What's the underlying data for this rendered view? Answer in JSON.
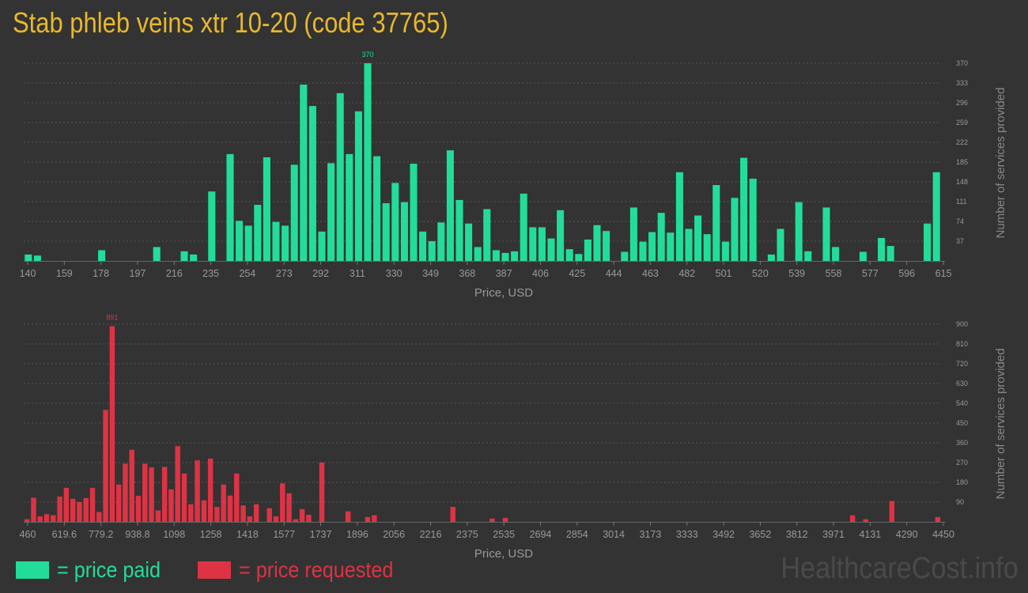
{
  "title": "Stab phleb veins xtr 10-20 (code 37765)",
  "colors": {
    "paid": "#22dd99",
    "requested": "#dd3344",
    "title": "#e8b82c",
    "axis_text": "#999999",
    "background": "#333333"
  },
  "legend": {
    "paid": "= price paid",
    "requested": "= price requested"
  },
  "watermark": "HealthcareCost.info",
  "chart_data": [
    {
      "type": "bar",
      "color": "#22dd99",
      "xlabel": "Price, USD",
      "ylabel": "Number of services provided",
      "x_tick_labels": [
        "140",
        "159",
        "178",
        "197",
        "216",
        "235",
        "254",
        "273",
        "292",
        "311",
        "330",
        "349",
        "368",
        "387",
        "406",
        "425",
        "444",
        "463",
        "482",
        "501",
        "520",
        "539",
        "558",
        "577",
        "596",
        "615"
      ],
      "y_tick_labels": [
        "37",
        "74",
        "111",
        "148",
        "185",
        "222",
        "259",
        "296",
        "333",
        "370"
      ],
      "ylim": [
        0,
        370
      ],
      "peak_label": "370",
      "values": [
        12,
        10,
        0,
        0,
        0,
        0,
        0,
        0,
        20,
        0,
        0,
        0,
        0,
        0,
        26,
        0,
        0,
        18,
        12,
        0,
        130,
        0,
        200,
        75,
        66,
        105,
        194,
        73,
        66,
        180,
        330,
        290,
        55,
        183,
        314,
        200,
        280,
        370,
        196,
        108,
        146,
        110,
        182,
        55,
        37,
        72,
        207,
        114,
        70,
        26,
        97,
        20,
        15,
        18,
        126,
        63,
        63,
        42,
        95,
        22,
        13,
        40,
        67,
        56,
        0,
        17,
        100,
        36,
        54,
        90,
        53,
        166,
        60,
        85,
        50,
        142,
        36,
        118,
        193,
        154,
        0,
        12,
        60,
        0,
        110,
        18,
        0,
        100,
        26,
        0,
        0,
        17,
        0,
        43,
        28,
        0,
        0,
        0,
        70,
        166
      ]
    },
    {
      "type": "bar",
      "color": "#dd3344",
      "xlabel": "Price, USD",
      "ylabel": "Number of services provided",
      "x_tick_labels": [
        "460",
        "619.6",
        "779.2",
        "938.8",
        "1098",
        "1258",
        "1418",
        "1577",
        "1737",
        "1896",
        "2056",
        "2216",
        "2375",
        "2535",
        "2694",
        "2854",
        "3014",
        "3173",
        "3333",
        "3492",
        "3652",
        "3812",
        "3971",
        "4131",
        "4290",
        "4450"
      ],
      "y_tick_labels": [
        "90",
        "180",
        "270",
        "360",
        "450",
        "540",
        "630",
        "720",
        "810",
        "900"
      ],
      "ylim": [
        0,
        900
      ],
      "peak_label": "891",
      "values": [
        12,
        110,
        25,
        35,
        30,
        115,
        155,
        105,
        90,
        108,
        155,
        45,
        510,
        891,
        170,
        265,
        328,
        118,
        265,
        248,
        52,
        250,
        148,
        345,
        220,
        80,
        280,
        98,
        288,
        68,
        170,
        120,
        220,
        75,
        25,
        80,
        0,
        62,
        25,
        175,
        130,
        12,
        58,
        32,
        0,
        270,
        0,
        0,
        0,
        48,
        0,
        0,
        22,
        30,
        0,
        0,
        0,
        0,
        0,
        0,
        0,
        0,
        0,
        0,
        0,
        68,
        0,
        0,
        0,
        0,
        0,
        15,
        0,
        18,
        0,
        0,
        0,
        0,
        0,
        0,
        0,
        0,
        0,
        0,
        0,
        0,
        0,
        0,
        0,
        0,
        0,
        0,
        0,
        0,
        0,
        0,
        0,
        0,
        0,
        0,
        0,
        0,
        0,
        0,
        0,
        0,
        0,
        0,
        0,
        0,
        0,
        0,
        0,
        0,
        0,
        0,
        0,
        0,
        0,
        0,
        0,
        0,
        0,
        0,
        0,
        0,
        30,
        0,
        12,
        0,
        0,
        0,
        95,
        0,
        0,
        0,
        0,
        0,
        0,
        22
      ]
    }
  ]
}
